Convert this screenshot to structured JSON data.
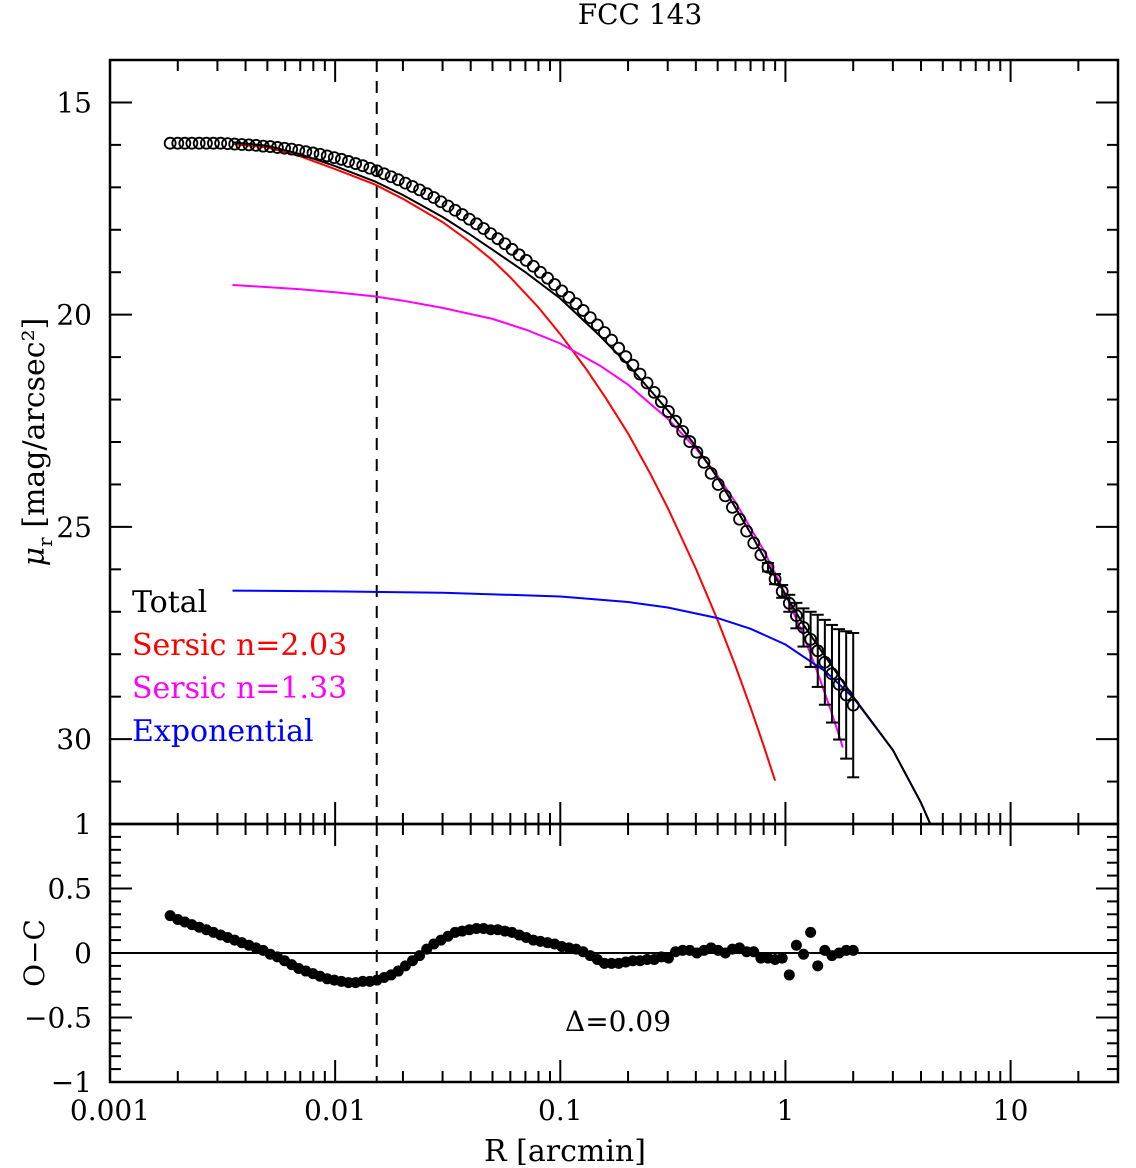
{
  "chart_data": [
    {
      "type": "line",
      "title": "FCC 143",
      "xlabel": "",
      "ylabel_main": "μ",
      "ylabel_sub": "r",
      "ylabel_rest": " [mag/arcsec²]",
      "xscale": "log",
      "xlim": [
        0.001,
        30
      ],
      "ylim": [
        15,
        32
      ],
      "y_inverted": true,
      "yticks": [
        "15",
        "20",
        "25",
        "30"
      ],
      "reference_line_x": 0.0153,
      "legend": {
        "placement": "left",
        "entries": [
          {
            "label": "Total",
            "color": "#000000"
          },
          {
            "label": "Sersic n=2.03",
            "color": "#ff0000"
          },
          {
            "label": "Sersic n=1.33",
            "color": "#ff00ff"
          },
          {
            "label": "Exponential",
            "color": "#0000ff"
          }
        ]
      },
      "series": [
        {
          "name": "Sersic n=2.03",
          "color": "#ff0000",
          "x": [
            0.0035,
            0.005,
            0.007,
            0.01,
            0.015,
            0.02,
            0.03,
            0.04,
            0.05,
            0.06,
            0.08,
            0.1,
            0.13,
            0.16,
            0.2,
            0.25,
            0.3,
            0.4,
            0.5,
            0.6,
            0.7,
            0.8,
            0.9
          ],
          "y": [
            15.98,
            16.06,
            16.27,
            16.57,
            16.93,
            17.27,
            17.82,
            18.3,
            18.72,
            19.12,
            19.83,
            20.46,
            21.27,
            21.98,
            22.8,
            23.73,
            24.55,
            25.98,
            27.2,
            28.28,
            29.26,
            30.15,
            30.98
          ]
        },
        {
          "name": "Sersic n=1.33",
          "color": "#ff00ff",
          "x": [
            0.0035,
            0.005,
            0.007,
            0.01,
            0.015,
            0.02,
            0.03,
            0.05,
            0.07,
            0.1,
            0.15,
            0.2,
            0.3,
            0.4,
            0.5,
            0.6,
            0.8,
            1.0,
            1.2,
            1.4,
            1.6,
            1.8
          ],
          "y": [
            19.3,
            19.35,
            19.4,
            19.47,
            19.57,
            19.67,
            19.84,
            20.1,
            20.35,
            20.68,
            21.2,
            21.65,
            22.45,
            23.15,
            23.8,
            24.42,
            25.55,
            26.58,
            27.55,
            28.48,
            29.36,
            30.2
          ]
        },
        {
          "name": "Exponential",
          "color": "#0000ff",
          "x": [
            0.0035,
            0.01,
            0.03,
            0.1,
            0.2,
            0.3,
            0.5,
            0.7,
            1.0,
            1.5,
            2.0,
            3.0,
            4.0,
            4.4
          ],
          "y": [
            26.5,
            26.52,
            26.55,
            26.64,
            26.77,
            26.9,
            27.15,
            27.4,
            27.77,
            28.4,
            29.02,
            30.26,
            31.5,
            32.0
          ]
        },
        {
          "name": "Total",
          "color": "#000000",
          "x": [
            0.0035,
            0.005,
            0.007,
            0.01,
            0.015,
            0.02,
            0.03,
            0.04,
            0.05,
            0.07,
            0.1,
            0.15,
            0.2,
            0.3,
            0.4,
            0.5,
            0.6,
            0.7,
            0.8,
            1.0,
            1.2,
            1.5,
            2.0,
            3.0,
            4.0,
            4.4
          ],
          "y": [
            15.94,
            16.02,
            16.22,
            16.5,
            16.86,
            17.18,
            17.7,
            18.12,
            18.47,
            19.0,
            19.62,
            20.5,
            21.18,
            22.25,
            23.1,
            23.85,
            24.55,
            25.15,
            25.7,
            26.6,
            27.3,
            28.05,
            29.0,
            30.26,
            31.5,
            32.0
          ]
        }
      ],
      "data_points": {
        "name": "",
        "x": [
          0.00185,
          0.002,
          0.00215,
          0.00231,
          0.00249,
          0.00268,
          0.00288,
          0.0031,
          0.00333,
          0.00358,
          0.00385,
          0.00414,
          0.00445,
          0.00479,
          0.00515,
          0.00554,
          0.00596,
          0.00641,
          0.00689,
          0.00741,
          0.00797,
          0.00857,
          0.00922,
          0.00991,
          0.01066,
          0.01146,
          0.01233,
          0.01326,
          0.01426,
          0.01533,
          0.01649,
          0.01773,
          0.01907,
          0.02051,
          0.02205,
          0.02372,
          0.02551,
          0.02743,
          0.0295,
          0.03172,
          0.03411,
          0.03669,
          0.03945,
          0.04243,
          0.04563,
          0.04907,
          0.05277,
          0.05675,
          0.06103,
          0.06563,
          0.07058,
          0.07591,
          0.08163,
          0.0878,
          0.09442,
          0.10154,
          0.1092,
          0.11743,
          0.12629,
          0.13581,
          0.14606,
          0.15707,
          0.16892,
          0.18166,
          0.19536,
          0.21009,
          0.22594,
          0.24298,
          0.26131,
          0.28102,
          0.30221,
          0.32501,
          0.34952,
          0.37588,
          0.40423,
          0.43472,
          0.46751,
          0.50277,
          0.54069,
          0.58147,
          0.62533,
          0.6725,
          0.72322,
          0.77776,
          0.83643,
          0.89951,
          0.96736,
          1.04032,
          1.11879,
          1.20317,
          1.29391,
          1.39151,
          1.49646,
          1.60933,
          1.73071,
          1.86125,
          2.0
        ],
        "y": [
          15.96,
          15.96,
          15.96,
          15.96,
          15.96,
          15.96,
          15.96,
          15.96,
          15.97,
          15.98,
          15.99,
          16.0,
          16.01,
          16.03,
          16.04,
          16.06,
          16.08,
          16.1,
          16.13,
          16.16,
          16.19,
          16.22,
          16.26,
          16.3,
          16.34,
          16.39,
          16.44,
          16.49,
          16.55,
          16.61,
          16.68,
          16.75,
          16.82,
          16.9,
          16.98,
          17.06,
          17.15,
          17.24,
          17.34,
          17.44,
          17.54,
          17.64,
          17.75,
          17.86,
          17.97,
          18.09,
          18.21,
          18.33,
          18.46,
          18.59,
          18.72,
          18.86,
          19.0,
          19.14,
          19.29,
          19.44,
          19.59,
          19.74,
          19.9,
          20.07,
          20.24,
          20.42,
          20.6,
          20.79,
          20.99,
          21.19,
          21.4,
          21.61,
          21.83,
          22.05,
          22.28,
          22.51,
          22.75,
          22.99,
          23.24,
          23.48,
          23.74,
          24.0,
          24.27,
          24.54,
          24.82,
          25.1,
          25.38,
          25.66,
          25.95,
          26.23,
          26.52,
          26.8,
          27.09,
          27.37,
          27.65,
          27.92,
          28.19,
          28.46,
          28.71,
          28.96,
          29.2
        ],
        "errors": [
          0.02,
          0.02,
          0.02,
          0.02,
          0.02,
          0.02,
          0.02,
          0.02,
          0.02,
          0.02,
          0.02,
          0.02,
          0.02,
          0.02,
          0.02,
          0.02,
          0.02,
          0.02,
          0.02,
          0.02,
          0.02,
          0.02,
          0.02,
          0.02,
          0.02,
          0.02,
          0.02,
          0.02,
          0.02,
          0.02,
          0.02,
          0.02,
          0.02,
          0.02,
          0.02,
          0.02,
          0.02,
          0.02,
          0.02,
          0.02,
          0.02,
          0.02,
          0.02,
          0.02,
          0.02,
          0.02,
          0.02,
          0.02,
          0.02,
          0.02,
          0.02,
          0.02,
          0.02,
          0.02,
          0.02,
          0.02,
          0.02,
          0.02,
          0.02,
          0.02,
          0.02,
          0.02,
          0.02,
          0.02,
          0.02,
          0.02,
          0.02,
          0.02,
          0.02,
          0.02,
          0.02,
          0.02,
          0.02,
          0.02,
          0.03,
          0.03,
          0.03,
          0.03,
          0.04,
          0.04,
          0.05,
          0.06,
          0.07,
          0.08,
          0.1,
          0.12,
          0.15,
          0.2,
          0.3,
          0.45,
          0.65,
          0.85,
          1.0,
          1.15,
          1.3,
          1.5,
          1.7
        ]
      }
    },
    {
      "type": "scatter",
      "xlabel": "R [arcmin]",
      "ylabel": "O−C",
      "xscale": "log",
      "xlim": [
        0.001,
        30
      ],
      "ylim": [
        -1,
        1
      ],
      "xticks": [
        0.001,
        0.01,
        0.1,
        1,
        10
      ],
      "xtick_labels": [
        "0.001",
        "0.01",
        "0.1",
        "1",
        "10"
      ],
      "yticks": [
        -1,
        -0.5,
        0,
        0.5,
        1
      ],
      "ytick_labels": [
        "−1",
        "−0.5",
        "0",
        "0.5",
        "1"
      ],
      "reference_line_y": 0,
      "annotation": "Δ=0.09",
      "series": [
        {
          "name": "",
          "x": [
            0.00185,
            0.002,
            0.00215,
            0.00231,
            0.00249,
            0.00268,
            0.00288,
            0.0031,
            0.00333,
            0.00358,
            0.00385,
            0.00414,
            0.00445,
            0.00479,
            0.00515,
            0.00554,
            0.00596,
            0.00641,
            0.00689,
            0.00741,
            0.00797,
            0.00857,
            0.00922,
            0.00991,
            0.01066,
            0.01146,
            0.01233,
            0.01326,
            0.01426,
            0.01533,
            0.01649,
            0.01773,
            0.01907,
            0.02051,
            0.02205,
            0.02372,
            0.02551,
            0.02743,
            0.0295,
            0.03172,
            0.03411,
            0.03669,
            0.03945,
            0.04243,
            0.04563,
            0.04907,
            0.05277,
            0.05675,
            0.06103,
            0.06563,
            0.07058,
            0.07591,
            0.08163,
            0.0878,
            0.09442,
            0.10154,
            0.1092,
            0.11743,
            0.12629,
            0.13581,
            0.14606,
            0.15707,
            0.16892,
            0.18166,
            0.19536,
            0.21009,
            0.22594,
            0.24298,
            0.26131,
            0.28102,
            0.30221,
            0.32501,
            0.34952,
            0.37588,
            0.40423,
            0.43472,
            0.46751,
            0.50277,
            0.54069,
            0.58147,
            0.62533,
            0.6725,
            0.72322,
            0.77776,
            0.83643,
            0.89951,
            0.96736,
            1.04032,
            1.11879,
            1.20317,
            1.29391,
            1.39151,
            1.49646,
            1.60933,
            1.73071,
            1.86125,
            2.0
          ],
          "y": [
            0.29,
            0.26,
            0.24,
            0.22,
            0.2,
            0.18,
            0.16,
            0.14,
            0.12,
            0.1,
            0.08,
            0.06,
            0.04,
            0.02,
            -0.01,
            -0.03,
            -0.06,
            -0.09,
            -0.12,
            -0.14,
            -0.16,
            -0.18,
            -0.2,
            -0.21,
            -0.22,
            -0.23,
            -0.23,
            -0.22,
            -0.22,
            -0.21,
            -0.19,
            -0.17,
            -0.14,
            -0.1,
            -0.06,
            -0.02,
            0.03,
            0.07,
            0.1,
            0.13,
            0.16,
            0.17,
            0.18,
            0.19,
            0.19,
            0.18,
            0.18,
            0.17,
            0.16,
            0.14,
            0.12,
            0.1,
            0.09,
            0.08,
            0.07,
            0.05,
            0.04,
            0.03,
            0.01,
            -0.02,
            -0.05,
            -0.08,
            -0.08,
            -0.08,
            -0.07,
            -0.06,
            -0.06,
            -0.05,
            -0.05,
            -0.03,
            -0.04,
            0.01,
            0.02,
            0.02,
            0.0,
            0.02,
            0.04,
            0.02,
            0.0,
            0.03,
            0.04,
            0.01,
            0.01,
            -0.04,
            -0.04,
            -0.05,
            -0.04,
            -0.17,
            0.06,
            -0.01,
            0.16,
            -0.1,
            0.02,
            -0.02,
            0.0,
            0.02,
            0.02
          ]
        }
      ]
    }
  ]
}
